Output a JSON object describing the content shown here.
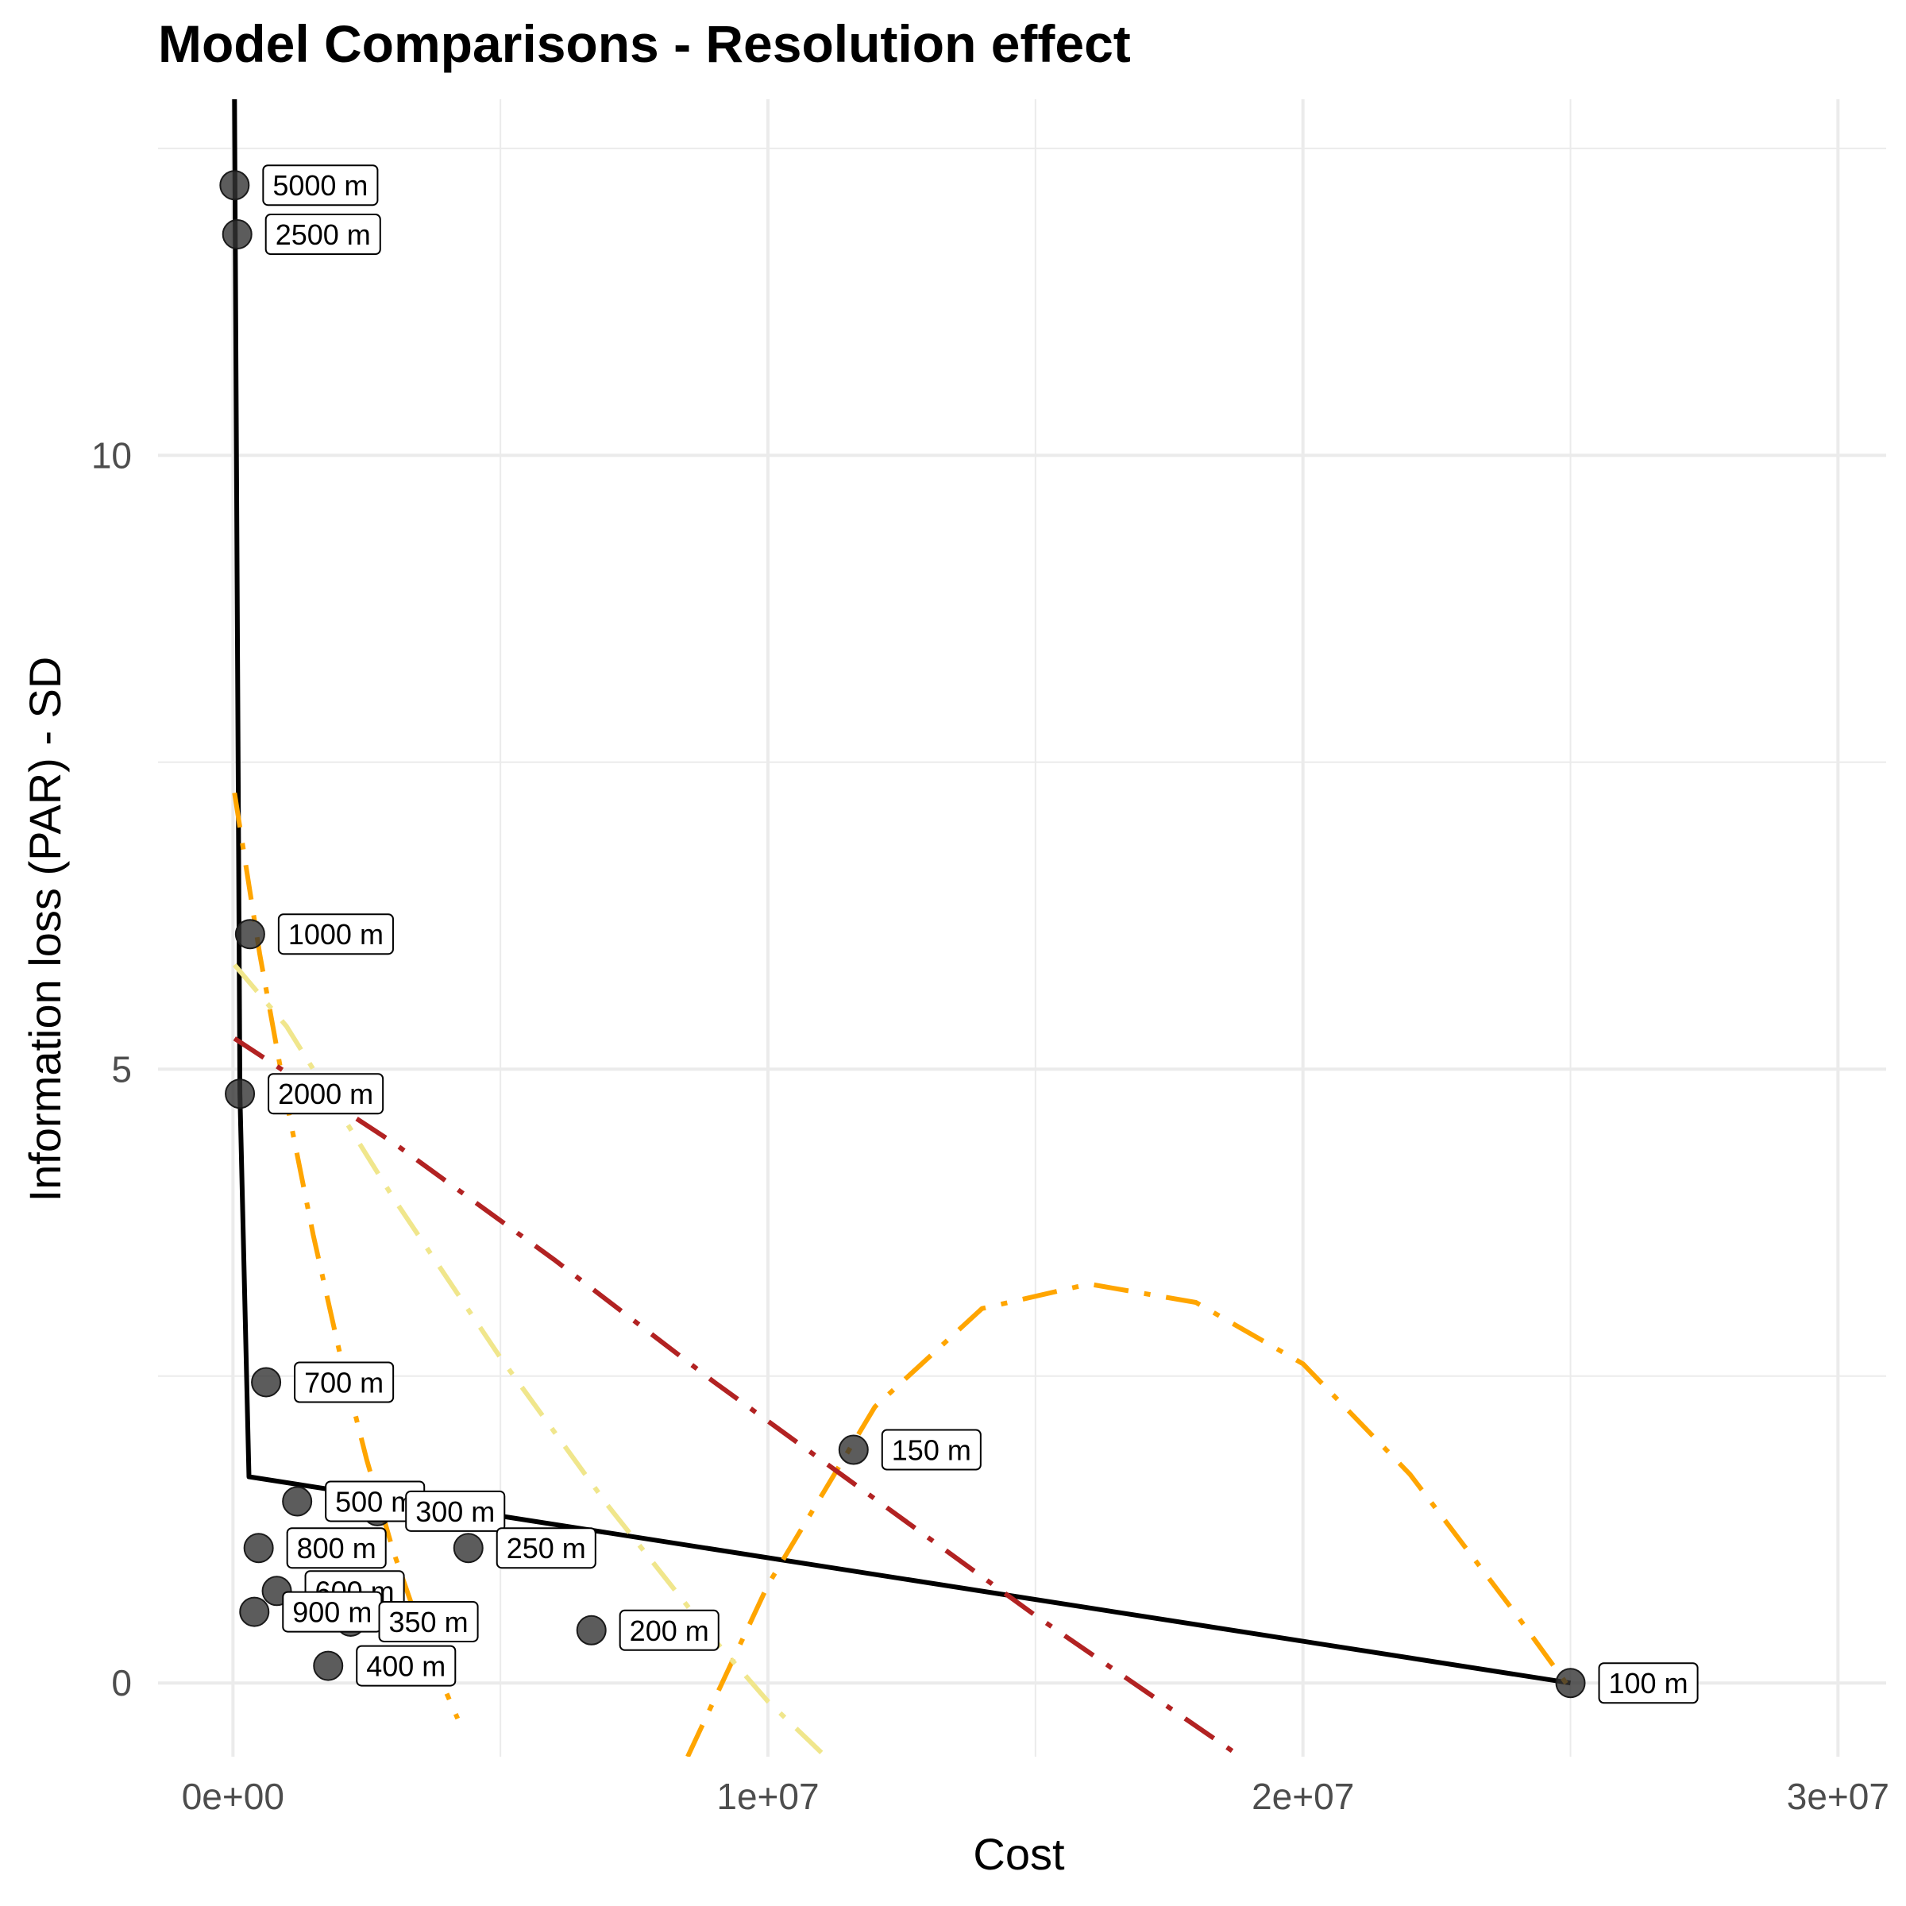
{
  "chart_data": {
    "type": "scatter",
    "title": "Model Comparisons - Resolution effect",
    "xlabel": "Cost",
    "ylabel": "Information loss (PAR) - SD",
    "xlim": [
      -1400000,
      30900000
    ],
    "ylim": [
      -0.6,
      12.9
    ],
    "x_ticks": [
      0,
      10000000,
      20000000,
      30000000
    ],
    "x_tick_labels": [
      "0e+00",
      "1e+07",
      "2e+07",
      "3e+07"
    ],
    "y_ticks": [
      0,
      5,
      10
    ],
    "y_tick_labels": [
      "0",
      "5",
      "10"
    ],
    "grid": true,
    "points": [
      {
        "label": "5000 m",
        "x": 30000,
        "y": 12.2
      },
      {
        "label": "2500 m",
        "x": 80000,
        "y": 11.8
      },
      {
        "label": "1000 m",
        "x": 320000,
        "y": 6.1
      },
      {
        "label": "2000 m",
        "x": 130000,
        "y": 4.8
      },
      {
        "label": "700 m",
        "x": 620000,
        "y": 2.45
      },
      {
        "label": "150 m",
        "x": 11600000,
        "y": 1.9
      },
      {
        "label": "500 m",
        "x": 1200000,
        "y": 1.48
      },
      {
        "label": "300 m",
        "x": 2700000,
        "y": 1.4
      },
      {
        "label": "800 m",
        "x": 480000,
        "y": 1.1
      },
      {
        "label": "250 m",
        "x": 4400000,
        "y": 1.1
      },
      {
        "label": "600 m",
        "x": 820000,
        "y": 0.75
      },
      {
        "label": "900 m",
        "x": 400000,
        "y": 0.58
      },
      {
        "label": "350 m",
        "x": 2200000,
        "y": 0.5
      },
      {
        "label": "200 m",
        "x": 6700000,
        "y": 0.43
      },
      {
        "label": "400 m",
        "x": 1780000,
        "y": 0.14
      },
      {
        "label": "100 m",
        "x": 25000000,
        "y": 0.0
      }
    ],
    "series": [
      {
        "style": "solid",
        "color": "#000000",
        "x": [
          30000,
          130000,
          300000,
          25000000
        ],
        "y": [
          12.9,
          4.8,
          1.68,
          0.0
        ]
      },
      {
        "style": "dash-dot",
        "color": "#ffa500",
        "x": [
          30000,
          500000,
          1000000,
          1500000,
          2000000,
          2500000,
          3000000,
          3500000,
          4000000,
          4200000
        ],
        "y": [
          7.25,
          5.94,
          4.74,
          3.65,
          2.68,
          1.82,
          1.07,
          0.44,
          -0.09,
          -0.29
        ]
      },
      {
        "style": "dash-dot",
        "color": "#ffa500",
        "x": [
          8500000,
          10000000,
          12000000,
          14000000,
          16000000,
          18000000,
          20000000,
          22000000,
          24000000,
          25000000
        ],
        "y": [
          -0.6,
          0.8,
          2.25,
          3.05,
          3.25,
          3.1,
          2.6,
          1.7,
          0.55,
          -0.05
        ]
      },
      {
        "style": "dash-dot",
        "color": "#f0e68c",
        "x": [
          30000,
          1000000,
          2000000,
          3000000,
          4000000,
          5000000,
          6000000,
          7000000,
          8000000,
          9000000,
          10000000,
          11200000
        ],
        "y": [
          5.85,
          5.35,
          4.65,
          3.95,
          3.3,
          2.65,
          2.05,
          1.45,
          0.9,
          0.35,
          -0.15,
          -0.65
        ]
      },
      {
        "style": "dash-dot",
        "color": "#b22222",
        "x": [
          30000,
          3000000,
          6000000,
          9000000,
          12000000,
          15000000,
          17000000,
          19000000
        ],
        "y": [
          5.25,
          4.4,
          3.45,
          2.45,
          1.5,
          0.55,
          -0.05,
          -0.65
        ]
      }
    ]
  }
}
